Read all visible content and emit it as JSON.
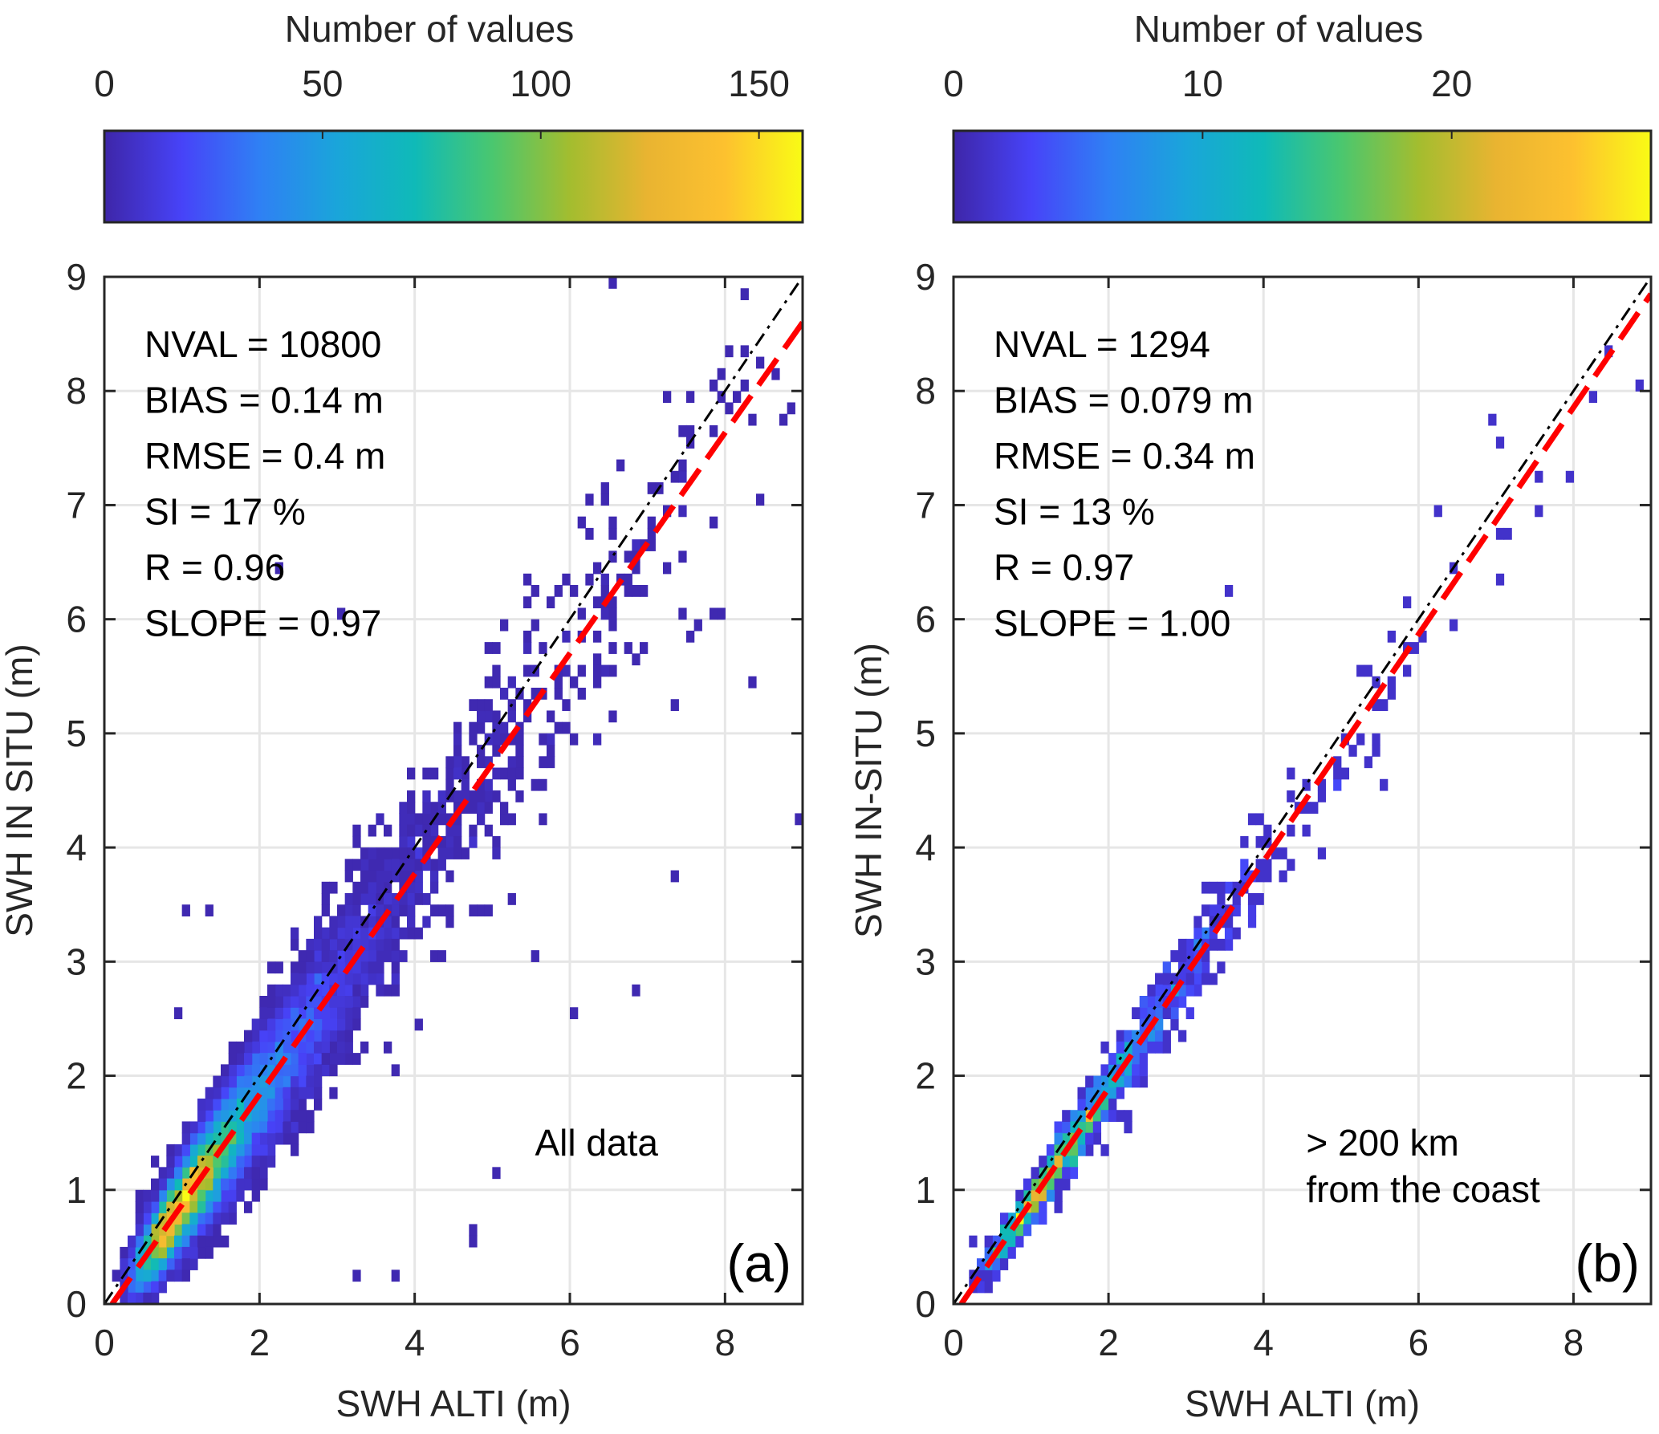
{
  "chart_data": [
    {
      "type": "heatmap",
      "panel_label": "(a)",
      "annotation": [
        "All data"
      ],
      "xlabel": "SWH ALTI (m)",
      "ylabel": "SWH IN SITU (m)",
      "xlim": [
        0,
        9
      ],
      "ylim": [
        0,
        9
      ],
      "xticks": [
        0,
        2,
        4,
        6,
        8
      ],
      "yticks": [
        0,
        1,
        2,
        3,
        4,
        5,
        6,
        7,
        8,
        9
      ],
      "grid": true,
      "bin_size": 0.1,
      "colorbar": {
        "label": "Number of values",
        "range": [
          0,
          160
        ],
        "ticks": [
          0,
          50,
          100,
          150
        ],
        "placement": "top",
        "colormap": [
          "#3e26a8",
          "#4743f8",
          "#2f80f4",
          "#1aa5da",
          "#0fbab8",
          "#4ac76f",
          "#a3bd2f",
          "#e9b431",
          "#fdc12f",
          "#f9fb15"
        ]
      },
      "stats": [
        {
          "label": "NVAL",
          "value": "10800"
        },
        {
          "label": "BIAS",
          "value": "0.14 m"
        },
        {
          "label": "RMSE",
          "value": "0.4 m"
        },
        {
          "label": "SI",
          "value": "17 %"
        },
        {
          "label": "R",
          "value": "0.96"
        },
        {
          "label": "SLOPE",
          "value": "0.97"
        }
      ],
      "reference_line": {
        "name": "1:1 line",
        "style": "dash-dot",
        "color": "#000000",
        "from": [
          0,
          0
        ],
        "to": [
          9,
          9
        ]
      },
      "regression_line": {
        "name": "fit",
        "style": "dashed",
        "color": "#ff0000",
        "from": [
          0.1,
          0
        ],
        "to": [
          9,
          8.6
        ]
      },
      "density": {
        "n": 10800,
        "spread_base": 0.12,
        "spread_scale": 0.075,
        "x_mode": 1.2,
        "x_tail": 1.7,
        "peak_count": 160
      },
      "outlier_bins": [
        [
          6.6,
          8.9
        ],
        [
          8.9,
          4.2
        ],
        [
          8.3,
          5.4
        ],
        [
          7.3,
          3.7
        ],
        [
          6.8,
          2.8
        ],
        [
          6.0,
          2.5
        ],
        [
          5.5,
          3.0
        ],
        [
          5.0,
          1.1
        ],
        [
          4.7,
          0.7
        ],
        [
          4.7,
          0.5
        ],
        [
          3.7,
          0.3
        ],
        [
          3.3,
          0.3
        ],
        [
          2.2,
          6.4
        ],
        [
          3.0,
          6.0
        ],
        [
          1.0,
          3.4
        ],
        [
          1.3,
          3.4
        ],
        [
          0.9,
          2.5
        ]
      ]
    },
    {
      "type": "heatmap",
      "panel_label": "(b)",
      "annotation": [
        "> 200 km",
        "from the coast"
      ],
      "xlabel": "SWH ALTI (m)",
      "ylabel": "SWH IN-SITU (m)",
      "xlim": [
        0,
        9
      ],
      "ylim": [
        0,
        9
      ],
      "xticks": [
        0,
        2,
        4,
        6,
        8
      ],
      "yticks": [
        0,
        1,
        2,
        3,
        4,
        5,
        6,
        7,
        8,
        9
      ],
      "grid": true,
      "bin_size": 0.1,
      "colorbar": {
        "label": "Number of values",
        "range": [
          0,
          28
        ],
        "ticks": [
          0,
          10,
          20
        ],
        "placement": "top",
        "colormap": [
          "#3e26a8",
          "#4743f8",
          "#2f80f4",
          "#1aa5da",
          "#0fbab8",
          "#4ac76f",
          "#a3bd2f",
          "#e9b431",
          "#fdc12f",
          "#f9fb15"
        ]
      },
      "stats": [
        {
          "label": "NVAL",
          "value": "1294"
        },
        {
          "label": "BIAS",
          "value": "0.079 m"
        },
        {
          "label": "RMSE",
          "value": "0.34 m"
        },
        {
          "label": "SI",
          "value": "13 %"
        },
        {
          "label": "R",
          "value": "0.97"
        },
        {
          "label": "SLOPE",
          "value": "1.00"
        }
      ],
      "reference_line": {
        "name": "1:1 line",
        "style": "dash-dot",
        "color": "#000000",
        "from": [
          0,
          0
        ],
        "to": [
          9,
          9
        ]
      },
      "regression_line": {
        "name": "fit",
        "style": "dashed",
        "color": "#ff0000",
        "from": [
          0.1,
          0
        ],
        "to": [
          9,
          8.85
        ]
      },
      "density": {
        "n": 1294,
        "spread_base": 0.05,
        "spread_scale": 0.04,
        "x_mode": 1.4,
        "x_tail": 1.5,
        "peak_count": 28
      },
      "outlier_bins": [
        [
          2.3,
          1.5
        ],
        [
          0.2,
          0.5
        ],
        [
          3.5,
          6.2
        ],
        [
          5.6,
          4.5
        ],
        [
          5.2,
          4.9
        ],
        [
          8.4,
          8.3
        ],
        [
          7.1,
          7.5
        ],
        [
          6.9,
          7.7
        ],
        [
          6.2,
          6.9
        ],
        [
          6.4,
          6.4
        ]
      ]
    }
  ]
}
